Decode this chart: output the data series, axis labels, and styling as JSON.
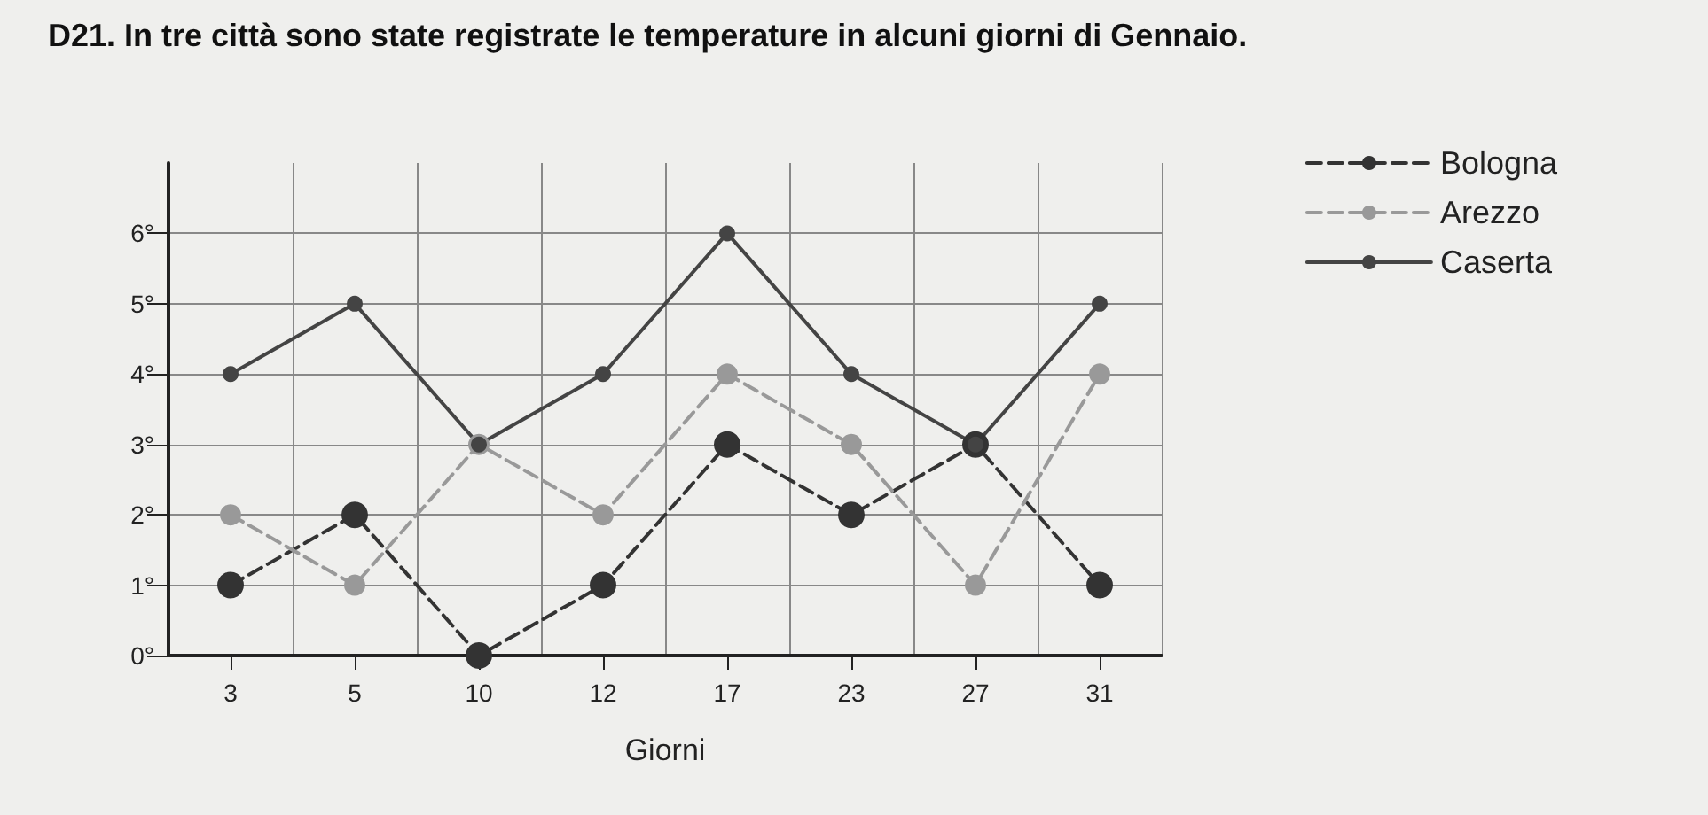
{
  "chart_data": {
    "type": "line",
    "title": "D21. In tre città sono state registrate le temperature in alcuni giorni di Gennaio.",
    "xlabel": "Giorni",
    "categories": [
      "3",
      "5",
      "10",
      "12",
      "17",
      "23",
      "27",
      "31"
    ],
    "series": [
      {
        "name": "Bologna",
        "color": "#333333",
        "line_style": "dashed",
        "values": [
          1,
          2,
          0,
          1,
          3,
          2,
          3,
          1
        ]
      },
      {
        "name": "Arezzo",
        "color": "#999999",
        "line_style": "dashed",
        "values": [
          2,
          1,
          3,
          2,
          4,
          3,
          1,
          4
        ]
      },
      {
        "name": "Caserta",
        "color": "#444444",
        "line_style": "solid",
        "values": [
          4,
          5,
          3,
          4,
          6,
          4,
          3,
          5
        ]
      }
    ],
    "ylim": [
      0,
      7
    ],
    "yticks": [
      {
        "value": 0,
        "label": "0°"
      },
      {
        "value": 1,
        "label": "1°"
      },
      {
        "value": 2,
        "label": "2°"
      },
      {
        "value": 3,
        "label": "3°"
      },
      {
        "value": 4,
        "label": "4°"
      },
      {
        "value": 5,
        "label": "5°"
      },
      {
        "value": 6,
        "label": "6°"
      }
    ],
    "grid": true,
    "legend": "top right",
    "marker": "circle"
  }
}
